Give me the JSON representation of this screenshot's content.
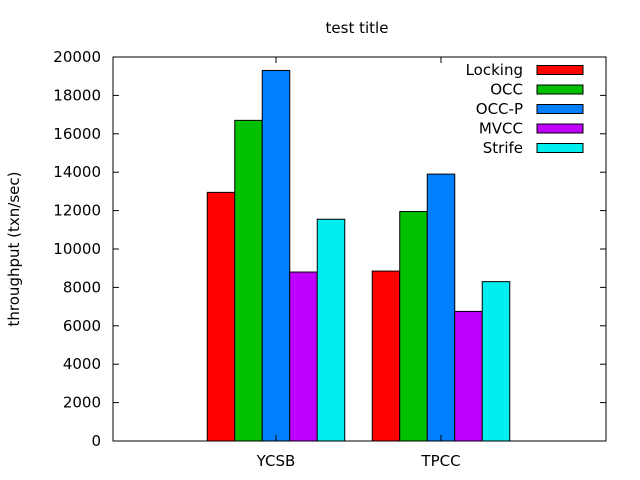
{
  "chart_data": {
    "type": "bar",
    "title": "test title",
    "xlabel": "",
    "ylabel": "throughput (txn/sec)",
    "ylim": [
      0,
      20000
    ],
    "yticks": [
      0,
      2000,
      4000,
      6000,
      8000,
      10000,
      12000,
      14000,
      16000,
      18000,
      20000
    ],
    "categories": [
      "YCSB",
      "TPCC"
    ],
    "series": [
      {
        "name": "Locking",
        "color": "#ff0000",
        "values": [
          12950,
          8850
        ]
      },
      {
        "name": "OCC",
        "color": "#00c000",
        "values": [
          16700,
          11950
        ]
      },
      {
        "name": "OCC-P",
        "color": "#0080ff",
        "values": [
          19300,
          13900
        ]
      },
      {
        "name": "MVCC",
        "color": "#c000ff",
        "values": [
          8800,
          6750
        ]
      },
      {
        "name": "Strife",
        "color": "#00eeee",
        "values": [
          11550,
          8300
        ]
      }
    ],
    "grid": false,
    "legend": "top-right"
  }
}
